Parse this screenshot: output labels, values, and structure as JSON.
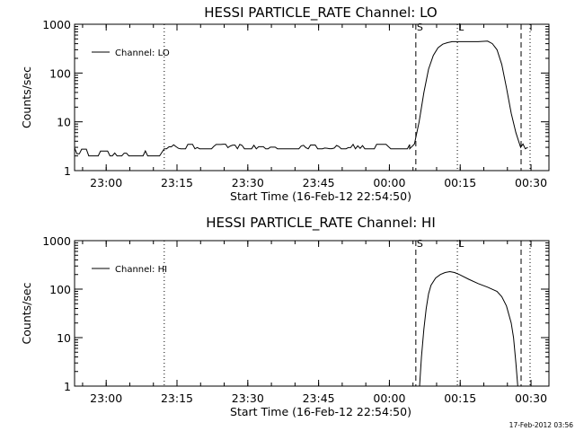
{
  "footer": {
    "timestamp": "17-Feb-2012 03:56"
  },
  "chart_data": [
    {
      "type": "line",
      "title": "HESSI PARTICLE_RATE Channel: LO",
      "xlabel": "Start Time (16-Feb-12 22:54:50)",
      "ylabel": "Counts/sec",
      "yscale": "log",
      "ylim": [
        1,
        1000
      ],
      "xlim_minutes": [
        -1.5,
        99
      ],
      "xticks": [
        {
          "label": "23:00",
          "t": 5.2
        },
        {
          "label": "23:15",
          "t": 20.2
        },
        {
          "label": "23:30",
          "t": 35.2
        },
        {
          "label": "23:45",
          "t": 50.2
        },
        {
          "label": "00:00",
          "t": 65.2
        },
        {
          "label": "00:15",
          "t": 80.2
        },
        {
          "label": "00:30",
          "t": 95.2
        }
      ],
      "yticks": [
        {
          "label": "1",
          "v": 1
        },
        {
          "label": "10",
          "v": 10
        },
        {
          "label": "100",
          "v": 100
        },
        {
          "label": "1000",
          "v": 1000
        }
      ],
      "legend": {
        "label": "Channel: LO",
        "position": "top-left"
      },
      "markers": [
        {
          "label": "S",
          "t": 70.8,
          "style": "dashed"
        },
        {
          "label": "L",
          "t": 79.6,
          "style": "dotted"
        }
      ],
      "vlines": [
        {
          "t": 17.5,
          "style": "dotted"
        },
        {
          "t": 93.1,
          "style": "dashed"
        },
        {
          "t": 95.0,
          "style": "dotted"
        }
      ],
      "series": [
        {
          "name": "Channel: LO",
          "t": [
            -1.5,
            16.5,
            16.5,
            69.5,
            70.5,
            71.5,
            72.5,
            73.5,
            74.5,
            75.5,
            76.5,
            77.5,
            78.5,
            80.0,
            82.0,
            84.0,
            86.0,
            87.0,
            88.0,
            89.0,
            90.0,
            91.0,
            92.0,
            93.0,
            93.5,
            94.0,
            94.5
          ],
          "y": [
            2,
            2,
            2.8,
            2.8,
            3.5,
            10,
            40,
            120,
            230,
            330,
            390,
            420,
            440,
            440,
            440,
            440,
            450,
            400,
            300,
            150,
            50,
            15,
            6,
            3,
            3.5,
            2.8,
            3
          ],
          "noise": [
            [
              -1.5,
              16.5,
              2,
              3
            ],
            [
              17.5,
              69.5,
              2.8,
              3.5
            ]
          ]
        }
      ]
    },
    {
      "type": "line",
      "title": "HESSI PARTICLE_RATE Channel: HI",
      "xlabel": "Start Time (16-Feb-12 22:54:50)",
      "ylabel": "Counts/sec",
      "yscale": "log",
      "ylim": [
        1,
        1000
      ],
      "xlim_minutes": [
        -1.5,
        99
      ],
      "xticks": [
        {
          "label": "23:00",
          "t": 5.2
        },
        {
          "label": "23:15",
          "t": 20.2
        },
        {
          "label": "23:30",
          "t": 35.2
        },
        {
          "label": "23:45",
          "t": 50.2
        },
        {
          "label": "00:00",
          "t": 65.2
        },
        {
          "label": "00:15",
          "t": 80.2
        },
        {
          "label": "00:30",
          "t": 95.2
        }
      ],
      "yticks": [
        {
          "label": "1",
          "v": 1
        },
        {
          "label": "10",
          "v": 10
        },
        {
          "label": "100",
          "v": 100
        },
        {
          "label": "1000",
          "v": 1000
        }
      ],
      "legend": {
        "label": "Channel: HI",
        "position": "top-left"
      },
      "markers": [
        {
          "label": "S",
          "t": 70.8,
          "style": "dashed"
        },
        {
          "label": "L",
          "t": 79.6,
          "style": "dotted"
        }
      ],
      "vlines": [
        {
          "t": 17.5,
          "style": "dotted"
        },
        {
          "t": 93.1,
          "style": "dashed"
        },
        {
          "t": 95.0,
          "style": "dotted"
        }
      ],
      "series": [
        {
          "name": "Channel: HI",
          "t": [
            71.6,
            72.0,
            72.5,
            73.0,
            73.5,
            74.0,
            75.0,
            76.0,
            77.0,
            78.0,
            79.0,
            80.0,
            82.0,
            84.0,
            86.0,
            88.0,
            89.0,
            90.0,
            91.0,
            91.5,
            92.0,
            92.4
          ],
          "y": [
            1,
            4,
            15,
            40,
            80,
            120,
            170,
            200,
            220,
            230,
            220,
            200,
            160,
            130,
            110,
            90,
            70,
            45,
            20,
            10,
            3,
            1
          ],
          "noise": []
        }
      ]
    }
  ]
}
